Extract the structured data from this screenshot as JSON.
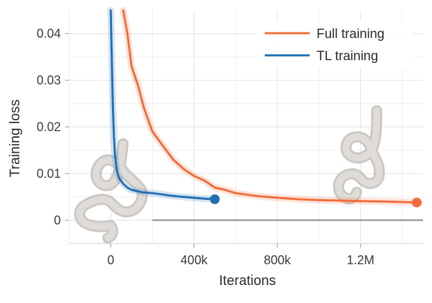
{
  "chart_data": {
    "type": "line",
    "title": "",
    "xlabel": "Iterations",
    "ylabel": "Training loss",
    "xlim": [
      -200000,
      1500000
    ],
    "ylim": [
      -0.005,
      0.045
    ],
    "x_ticks": [
      {
        "value": 0,
        "label": "0"
      },
      {
        "value": 400000,
        "label": "400k"
      },
      {
        "value": 800000,
        "label": "800k"
      },
      {
        "value": 1200000,
        "label": "1.2M"
      }
    ],
    "y_ticks": [
      {
        "value": 0,
        "label": "0"
      },
      {
        "value": 0.01,
        "label": "0.01"
      },
      {
        "value": 0.02,
        "label": "0.02"
      },
      {
        "value": 0.03,
        "label": "0.03"
      },
      {
        "value": 0.04,
        "label": "0.04"
      }
    ],
    "grid": true,
    "legend_position": "top-right",
    "series": [
      {
        "name": "Full training",
        "color": "#f26b3a",
        "x": [
          60000,
          80000,
          100000,
          130000,
          160000,
          200000,
          250000,
          300000,
          350000,
          400000,
          450000,
          500000,
          550000,
          600000,
          700000,
          800000,
          900000,
          1000000,
          1100000,
          1200000,
          1300000,
          1400000,
          1470000
        ],
        "y": [
          0.045,
          0.04,
          0.033,
          0.029,
          0.024,
          0.019,
          0.016,
          0.013,
          0.011,
          0.0095,
          0.0085,
          0.007,
          0.0065,
          0.0058,
          0.0052,
          0.0048,
          0.0045,
          0.0043,
          0.0042,
          0.0041,
          0.004,
          0.0039,
          0.0038
        ],
        "end_marker": true
      },
      {
        "name": "TL training",
        "color": "#1f6fb2",
        "x": [
          0,
          5000,
          10000,
          15000,
          20000,
          30000,
          40000,
          60000,
          80000,
          100000,
          150000,
          200000,
          250000,
          300000,
          350000,
          400000,
          450000,
          500000
        ],
        "y": [
          0.045,
          0.035,
          0.025,
          0.018,
          0.014,
          0.0105,
          0.009,
          0.0078,
          0.007,
          0.0065,
          0.006,
          0.0058,
          0.0055,
          0.0052,
          0.005,
          0.0048,
          0.0046,
          0.0045
        ],
        "end_marker": true
      }
    ],
    "reference_line": {
      "y": 0,
      "x_start": 200000,
      "x_end": 1500000,
      "color": "#888888"
    }
  }
}
